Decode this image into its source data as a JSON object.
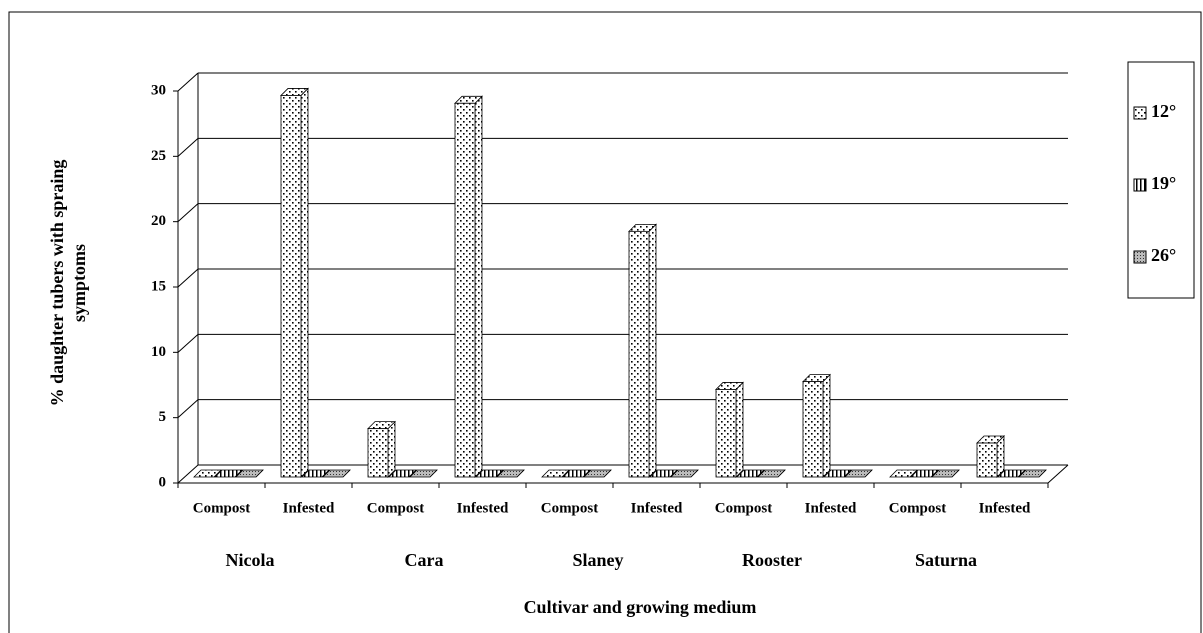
{
  "chart_data": {
    "type": "bar3d",
    "y_label": "% daughter tubers with spraing symptoms",
    "x_label": "Cultivar and growing medium",
    "categories": [
      "Compost",
      "Infested",
      "Compost",
      "Infested",
      "Compost",
      "Infested",
      "Compost",
      "Infested",
      "Compost",
      "Infested"
    ],
    "groups": [
      "Nicola",
      "Cara",
      "Slaney",
      "Rooster",
      "Saturna"
    ],
    "series": [
      {
        "name": "12°",
        "values": [
          0,
          29.2,
          3.7,
          28.6,
          0,
          18.8,
          6.7,
          7.3,
          0,
          2.6
        ]
      },
      {
        "name": "19°",
        "values": [
          0,
          0,
          0,
          0,
          0,
          0,
          0,
          0,
          0,
          0
        ]
      },
      {
        "name": "26°",
        "values": [
          0,
          0,
          0,
          0,
          0,
          0,
          0,
          0,
          0,
          0
        ]
      }
    ],
    "ylim": [
      0,
      30
    ],
    "yticks": [
      0,
      5,
      10,
      15,
      20,
      25,
      30
    ],
    "grid": true,
    "legend": "right"
  }
}
